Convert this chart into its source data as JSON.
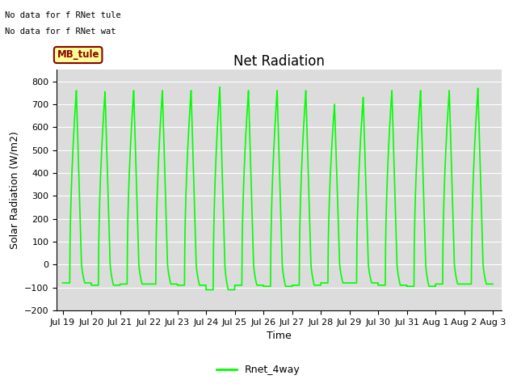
{
  "title": "Net Radiation",
  "xlabel": "Time",
  "ylabel": "Solar Radiation (W/m2)",
  "ylim": [
    -200,
    850
  ],
  "yticks": [
    -200,
    -100,
    0,
    100,
    200,
    300,
    400,
    500,
    600,
    700,
    800
  ],
  "line_color": "#00FF00",
  "background_color": "#DCDCDC",
  "fig_background": "#FFFFFF",
  "annotation1": "No data for f RNet tule",
  "annotation2": "No data for f RNet wat",
  "box_label": "MB_tule",
  "box_facecolor": "#FFFF99",
  "box_edgecolor": "#8B0000",
  "box_textcolor": "#8B0000",
  "legend_label": "Rnet_4way",
  "peak_values": [
    760,
    755,
    760,
    760,
    760,
    775,
    760,
    760,
    760,
    700,
    730,
    760,
    760,
    760,
    770
  ],
  "trough_values": [
    -80,
    -90,
    -85,
    -85,
    -90,
    -110,
    -90,
    -95,
    -90,
    -80,
    -80,
    -90,
    -95,
    -85,
    -85
  ],
  "tick_labels": [
    "Jul 19",
    "Jul 20",
    "Jul 21",
    "Jul 22",
    "Jul 23",
    "Jul 24",
    "Jul 25",
    "Jul 26",
    "Jul 27",
    "Jul 28",
    "Jul 29",
    "Jul 30",
    "Jul 31",
    "Aug 1",
    "Aug 2",
    "Aug 3"
  ],
  "title_fontsize": 12,
  "label_fontsize": 9,
  "tick_fontsize": 8,
  "linewidth": 1.2
}
